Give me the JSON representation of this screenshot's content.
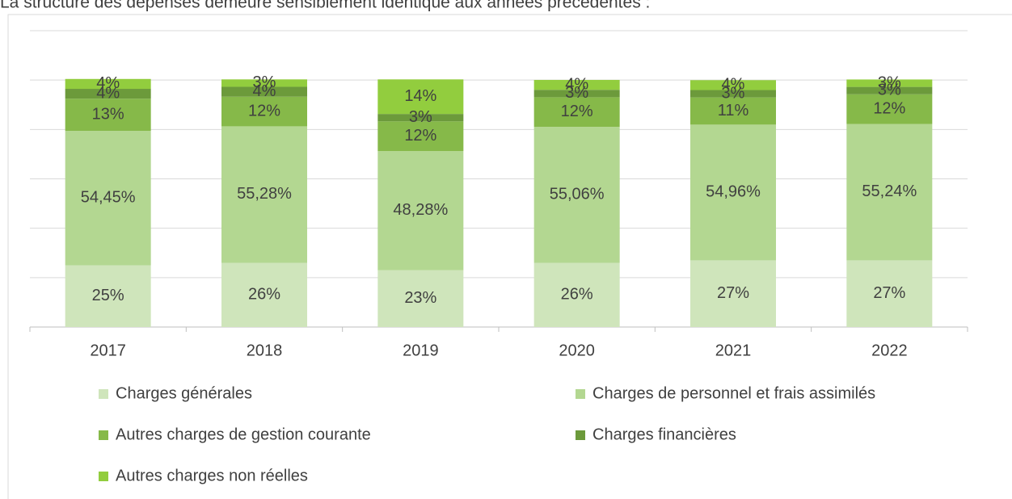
{
  "chart_data": {
    "type": "stacked_bar",
    "title": "La structure des dépenses demeure sensiblement identique aux années précédentes :",
    "categories": [
      "2017",
      "2018",
      "2019",
      "2020",
      "2021",
      "2022"
    ],
    "series": [
      {
        "name": "Charges générales",
        "color": "#cfe5bb",
        "values": [
          25,
          26,
          23,
          26,
          27,
          27
        ],
        "value_labels": [
          "25%",
          "26%",
          "23%",
          "26%",
          "27%",
          "27%"
        ]
      },
      {
        "name": "Charges de personnel et frais assimilés",
        "color": "#b3d791",
        "values": [
          54.45,
          55.28,
          48.28,
          55.06,
          54.96,
          55.24
        ],
        "value_labels": [
          "54,45%",
          "55,28%",
          "48,28%",
          "55,06%",
          "54,96%",
          "55,24%"
        ]
      },
      {
        "name": "Autres charges de gestion courante",
        "color": "#86b949",
        "values": [
          13,
          12,
          12,
          12,
          11,
          12
        ],
        "value_labels": [
          "13%",
          "12%",
          "12%",
          "12%",
          "11%",
          "12%"
        ]
      },
      {
        "name": "Charges financières",
        "color": "#6c9a3b",
        "values": [
          4,
          4,
          3,
          3,
          3,
          3
        ],
        "value_labels": [
          "4%",
          "4%",
          "3%",
          "3%",
          "3%",
          "3%"
        ]
      },
      {
        "name": "Autres charges non réelles",
        "color": "#92cd3e",
        "values": [
          4,
          3,
          14,
          4,
          4,
          3
        ],
        "value_labels": [
          "4%",
          "3%",
          "14%",
          "4%",
          "4%",
          "3%"
        ]
      }
    ],
    "ylim": [
      0,
      120
    ],
    "yticks": [
      0,
      20,
      40,
      60,
      80,
      100,
      120
    ],
    "grid": true
  }
}
